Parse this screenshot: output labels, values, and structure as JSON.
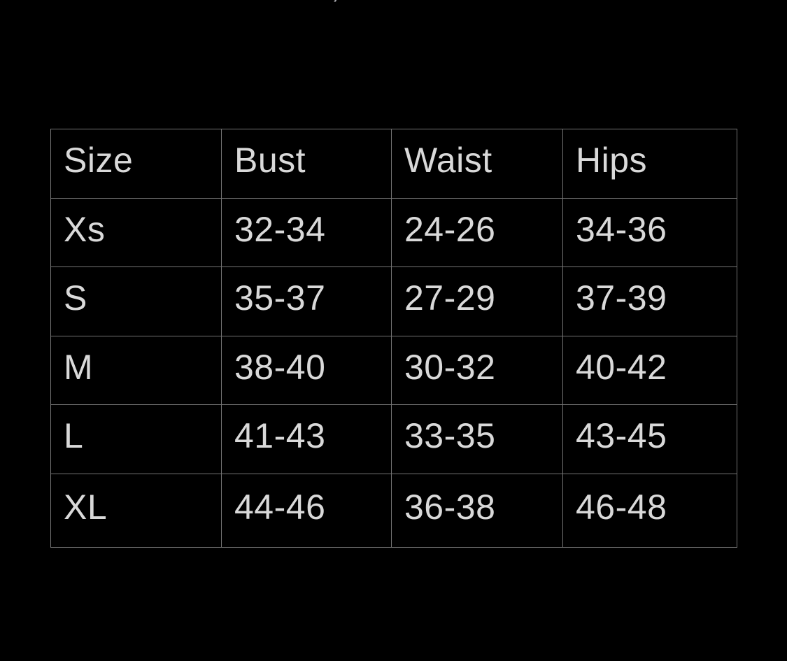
{
  "colors": {
    "background": "#000000",
    "table_border": "#757575",
    "text": "#d9d9d9",
    "artifact": "#a8a8ae"
  },
  "decorations": {
    "top_cutoff_glyph": "’"
  },
  "chart_data": {
    "type": "table",
    "columns": [
      "Size",
      "Bust",
      "Waist",
      "Hips"
    ],
    "rows": [
      [
        "Xs",
        "32-34",
        "24-26",
        "34-36"
      ],
      [
        "S",
        "35-37",
        "27-29",
        "37-39"
      ],
      [
        "M",
        "38-40",
        "30-32",
        "40-42"
      ],
      [
        "L",
        "41-43",
        "33-35",
        "43-45"
      ],
      [
        "XL",
        "44-46",
        "36-38",
        "46-48"
      ]
    ]
  }
}
